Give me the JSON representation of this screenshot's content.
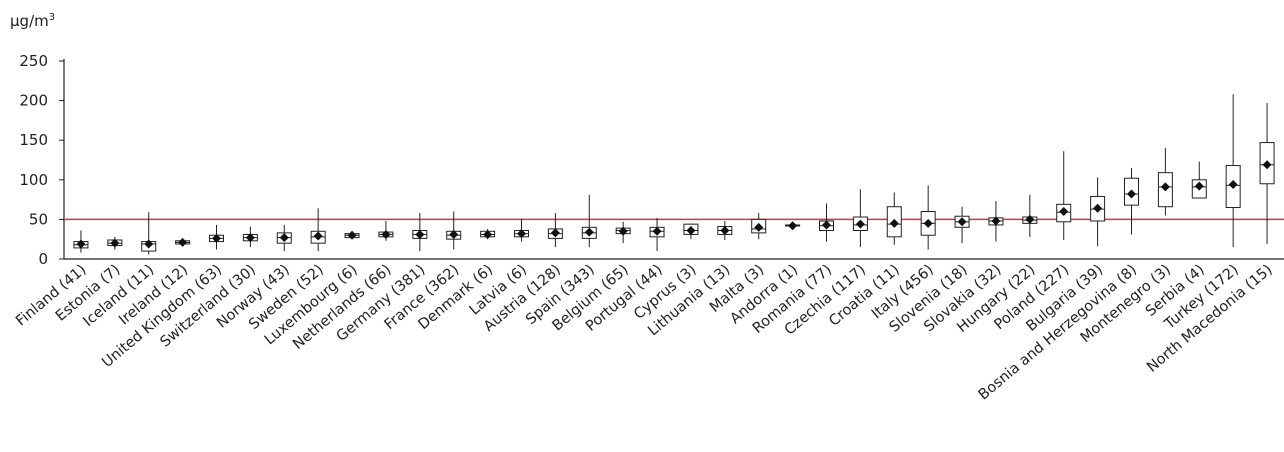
{
  "chart_data": {
    "type": "box",
    "title": "",
    "xlabel": "",
    "ylabel": "µg/m3",
    "unit": {
      "base": "µg/m",
      "sup": "3"
    },
    "ylim": [
      0,
      250
    ],
    "yticks": [
      0,
      50,
      100,
      150,
      200,
      250
    ],
    "grid": false,
    "reference_line": {
      "value": 50,
      "color": "#e03131"
    },
    "colors": {
      "box": "#222222",
      "marker": "#111111",
      "axis": "#222222"
    },
    "categories": [
      "Finland (41)",
      "Estonia (7)",
      "Iceland (11)",
      "Ireland (12)",
      "United Kingdom (63)",
      "Switzerland (30)",
      "Norway (43)",
      "Sweden (52)",
      "Luxembourg (6)",
      "Netherlands (66)",
      "Germany (381)",
      "France (362)",
      "Denmark (6)",
      "Latvia (6)",
      "Austria (128)",
      "Spain (343)",
      "Belgium (65)",
      "Portugal (44)",
      "Cyprus (3)",
      "Lithuania (13)",
      "Malta (3)",
      "Andorra (1)",
      "Romania (77)",
      "Czechia (117)",
      "Croatia (11)",
      "Italy (456)",
      "Slovenia (18)",
      "Slovakia (32)",
      "Hungary (22)",
      "Poland (227)",
      "Bulgaria (39)",
      "Bosnia and Herzegovina (8)",
      "Montenegro (3)",
      "Serbia (4)",
      "Turkey (172)",
      "North Macedonia (15)"
    ],
    "series": [
      {
        "min": [
          8,
          12,
          6,
          16,
          12,
          15,
          10,
          10,
          26,
          23,
          10,
          12,
          25,
          22,
          15,
          15,
          20,
          10,
          25,
          24,
          25,
          42,
          22,
          15,
          18,
          12,
          20,
          22,
          28,
          24,
          16,
          31,
          55,
          80,
          15,
          19
        ],
        "q1": [
          14,
          17,
          10,
          19,
          22,
          23,
          20,
          20,
          27,
          28,
          26,
          25,
          28,
          28,
          26,
          26,
          32,
          28,
          31,
          31,
          33,
          42,
          36,
          36,
          28,
          30,
          40,
          43,
          45,
          47,
          48,
          68,
          66,
          77,
          65,
          95
        ],
        "median": [
          18,
          20,
          19,
          21,
          26,
          27,
          27,
          28,
          30,
          31,
          31,
          30,
          31,
          32,
          32,
          33,
          36,
          35,
          36,
          36,
          38,
          42,
          42,
          43,
          44,
          45,
          47,
          48,
          49,
          59,
          63,
          82,
          91,
          91,
          93,
          119
        ],
        "q3": [
          22,
          24,
          22,
          23,
          30,
          31,
          33,
          35,
          32,
          34,
          36,
          35,
          35,
          36,
          38,
          40,
          39,
          40,
          44,
          41,
          50,
          43,
          48,
          53,
          66,
          60,
          54,
          52,
          53,
          69,
          79,
          102,
          109,
          100,
          118,
          147
        ],
        "max": [
          36,
          28,
          59,
          26,
          43,
          41,
          43,
          64,
          32,
          48,
          58,
          60,
          38,
          51,
          58,
          81,
          47,
          52,
          45,
          48,
          58,
          43,
          70,
          88,
          84,
          93,
          66,
          73,
          81,
          136,
          103,
          115,
          140,
          123,
          208,
          197
        ],
        "mean": [
          19,
          20,
          19,
          21,
          26,
          27,
          27,
          29,
          30,
          31,
          31,
          31,
          31,
          32,
          33,
          34,
          35,
          35,
          36,
          36,
          40,
          42,
          43,
          44,
          45,
          45,
          47,
          48,
          50,
          60,
          64,
          82,
          91,
          92,
          94,
          119
        ]
      }
    ]
  }
}
